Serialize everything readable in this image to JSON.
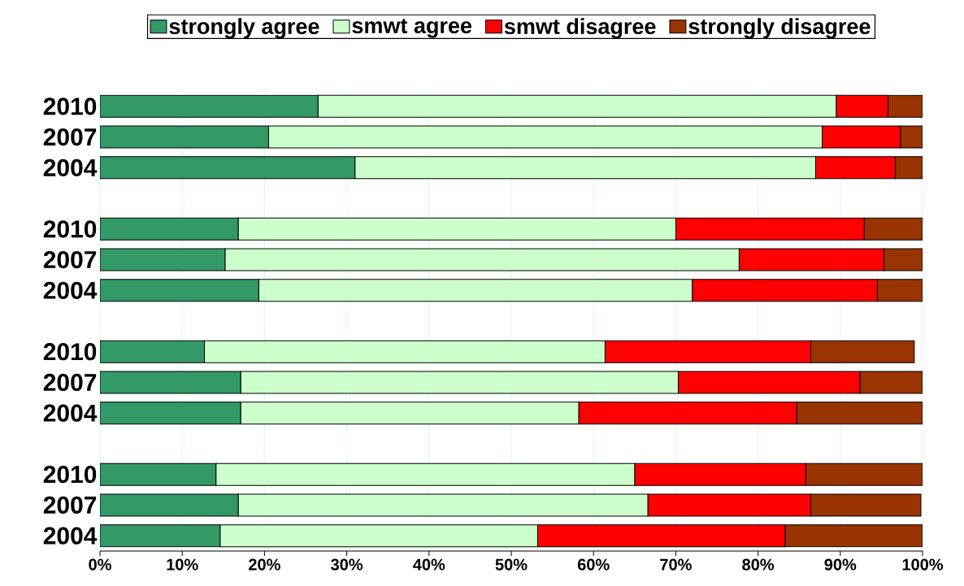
{
  "chart_data": {
    "type": "bar",
    "orientation": "horizontal",
    "stacked": true,
    "legend": "top",
    "grid": "x",
    "categories": [
      "2010",
      "2007",
      "2004",
      null,
      "2010",
      "2007",
      "2004",
      null,
      "2010",
      "2007",
      "2004",
      null,
      "2010",
      "2007",
      "2004"
    ],
    "series": [
      {
        "name": "strongly agree",
        "color": "#339966",
        "values": [
          26.5,
          20.5,
          31.0,
          null,
          16.8,
          15.2,
          19.3,
          null,
          12.7,
          17.1,
          17.1,
          null,
          14.1,
          16.8,
          14.6
        ]
      },
      {
        "name": "smwt agree",
        "color": "#ccffcc",
        "values": [
          63.0,
          67.3,
          56.0,
          null,
          53.2,
          62.5,
          52.7,
          null,
          48.7,
          53.2,
          41.1,
          null,
          50.9,
          49.8,
          38.6
        ]
      },
      {
        "name": "smwt disagree",
        "color": "#ff0000",
        "values": [
          6.3,
          9.5,
          9.7,
          null,
          22.9,
          17.6,
          22.5,
          null,
          25.0,
          22.1,
          26.5,
          null,
          20.8,
          19.8,
          30.1
        ]
      },
      {
        "name": "strongly disagree",
        "color": "#993300",
        "values": [
          4.2,
          2.7,
          3.3,
          null,
          7.1,
          4.7,
          5.5,
          null,
          12.6,
          7.6,
          15.3,
          null,
          14.2,
          13.4,
          16.7
        ]
      }
    ],
    "xlim": [
      0,
      100
    ],
    "xticks": [
      {
        "value": 0,
        "label": "0%"
      },
      {
        "value": 10,
        "label": "10%"
      },
      {
        "value": 20,
        "label": "20%"
      },
      {
        "value": 30,
        "label": "30%"
      },
      {
        "value": 40,
        "label": "40%"
      },
      {
        "value": 50,
        "label": "50%"
      },
      {
        "value": 60,
        "label": "60%"
      },
      {
        "value": 70,
        "label": "70%"
      },
      {
        "value": 80,
        "label": "80%"
      },
      {
        "value": 90,
        "label": "90%"
      },
      {
        "value": 100,
        "label": "100%"
      }
    ]
  }
}
